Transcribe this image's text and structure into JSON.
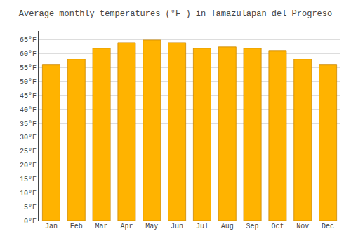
{
  "chart_data": {
    "type": "bar",
    "title": "Average monthly temperatures (°F ) in Tamazulapan del Progreso",
    "categories": [
      "Jan",
      "Feb",
      "Mar",
      "Apr",
      "May",
      "Jun",
      "Jul",
      "Aug",
      "Sep",
      "Oct",
      "Nov",
      "Dec"
    ],
    "values": [
      56,
      58,
      62,
      64,
      65,
      64,
      62,
      62.5,
      62,
      61,
      58,
      56
    ],
    "color": "#FFB300",
    "ylim": [
      0,
      68
    ],
    "yticks": [
      {
        "value": 0,
        "label": "0°F"
      },
      {
        "value": 5,
        "label": "5°F"
      },
      {
        "value": 10,
        "label": "10°F"
      },
      {
        "value": 15,
        "label": "15°F"
      },
      {
        "value": 20,
        "label": "20°F"
      },
      {
        "value": 25,
        "label": "25°F"
      },
      {
        "value": 30,
        "label": "30°F"
      },
      {
        "value": 35,
        "label": "35°F"
      },
      {
        "value": 40,
        "label": "40°F"
      },
      {
        "value": 45,
        "label": "45°F"
      },
      {
        "value": 50,
        "label": "50°F"
      },
      {
        "value": 55,
        "label": "55°F"
      },
      {
        "value": 60,
        "label": "60°F"
      },
      {
        "value": 65,
        "label": "65°F"
      }
    ],
    "grid": true
  }
}
